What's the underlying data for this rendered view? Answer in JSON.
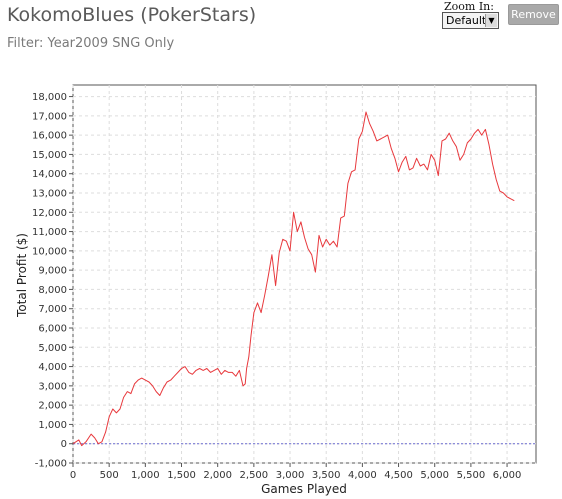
{
  "header": {
    "title": "KokomoBlues (PokerStars)",
    "filter": "Filter: Year2009 SNG Only"
  },
  "controls": {
    "zoom_label": "Zoom In:",
    "zoom_value": "Default",
    "remove_label": "Remove"
  },
  "chart_data": {
    "type": "line",
    "xlabel": "Games Played",
    "ylabel": "Total Profit ($)",
    "xlim": [
      0,
      6400
    ],
    "ylim": [
      -1000,
      18600
    ],
    "x_ticks": [
      0,
      500,
      1000,
      1500,
      2000,
      2500,
      3000,
      3500,
      4000,
      4500,
      5000,
      5500,
      6000
    ],
    "x_tick_labels": [
      "0",
      "500",
      "1,000",
      "1,500",
      "2,000",
      "2,500",
      "3,000",
      "3,500",
      "4,000",
      "4,500",
      "5,000",
      "5,500",
      "6,000"
    ],
    "y_ticks": [
      -1000,
      0,
      1000,
      2000,
      3000,
      4000,
      5000,
      6000,
      7000,
      8000,
      9000,
      10000,
      11000,
      12000,
      13000,
      14000,
      15000,
      16000,
      17000,
      18000
    ],
    "y_tick_labels": [
      "-1,000",
      "0",
      "1,000",
      "2,000",
      "3,000",
      "4,000",
      "5,000",
      "6,000",
      "7,000",
      "8,000",
      "9,000",
      "10,000",
      "11,000",
      "12,000",
      "13,000",
      "14,000",
      "15,000",
      "16,000",
      "17,000",
      "18,000"
    ],
    "grid": true,
    "zero_line": true,
    "series": [
      {
        "color": "#e8393d",
        "x": [
          0,
          80,
          120,
          180,
          250,
          300,
          350,
          400,
          450,
          500,
          550,
          600,
          650,
          700,
          750,
          800,
          850,
          900,
          950,
          1000,
          1050,
          1100,
          1150,
          1200,
          1250,
          1300,
          1350,
          1400,
          1450,
          1500,
          1550,
          1600,
          1650,
          1700,
          1750,
          1800,
          1850,
          1900,
          1950,
          2000,
          2050,
          2100,
          2150,
          2200,
          2250,
          2300,
          2350,
          2380,
          2400,
          2430,
          2460,
          2500,
          2550,
          2600,
          2650,
          2700,
          2750,
          2800,
          2850,
          2900,
          2950,
          3000,
          3050,
          3100,
          3150,
          3200,
          3250,
          3300,
          3350,
          3400,
          3450,
          3500,
          3550,
          3600,
          3650,
          3700,
          3750,
          3800,
          3850,
          3900,
          3950,
          4000,
          4050,
          4100,
          4150,
          4200,
          4250,
          4300,
          4350,
          4400,
          4450,
          4500,
          4550,
          4600,
          4650,
          4700,
          4750,
          4800,
          4850,
          4900,
          4950,
          5000,
          5050,
          5100,
          5150,
          5200,
          5250,
          5300,
          5350,
          5400,
          5450,
          5500,
          5550,
          5600,
          5650,
          5700,
          5750,
          5800,
          5850,
          5900,
          5950,
          6000,
          6050,
          6100
        ],
        "y": [
          0,
          200,
          -100,
          100,
          500,
          300,
          0,
          100,
          600,
          1400,
          1800,
          1600,
          1800,
          2400,
          2700,
          2600,
          3100,
          3300,
          3400,
          3300,
          3200,
          3000,
          2700,
          2500,
          2900,
          3200,
          3300,
          3500,
          3700,
          3900,
          4000,
          3700,
          3600,
          3800,
          3900,
          3800,
          3900,
          3700,
          3800,
          3900,
          3600,
          3800,
          3700,
          3700,
          3500,
          3800,
          3000,
          3100,
          3900,
          4500,
          5600,
          6800,
          7300,
          6800,
          7700,
          8700,
          9800,
          8200,
          9900,
          10600,
          10500,
          10000,
          12000,
          11000,
          11500,
          10700,
          10100,
          9800,
          8900,
          10800,
          10200,
          10600,
          10300,
          10500,
          10200,
          11700,
          11800,
          13500,
          14100,
          14200,
          15800,
          16200,
          17200,
          16600,
          16200,
          15700,
          15800,
          15900,
          16000,
          15300,
          14800,
          14100,
          14600,
          14900,
          14200,
          14300,
          14800,
          14400,
          14500,
          14200,
          15000,
          14700,
          13900,
          15700,
          15800,
          16100,
          15700,
          15400,
          14700,
          15000,
          15600,
          15800,
          16100,
          16300,
          16000,
          16300,
          15500,
          14500,
          13700,
          13100,
          13000,
          12800,
          12700,
          12600
        ]
      }
    ]
  }
}
